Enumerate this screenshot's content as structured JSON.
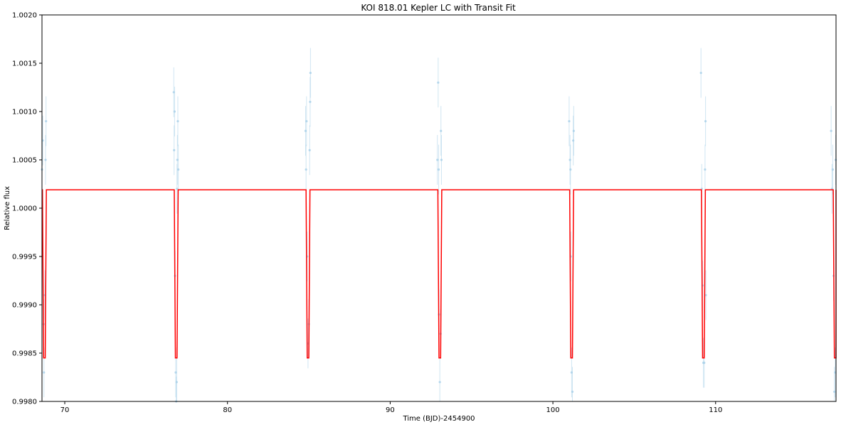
{
  "chart_data": {
    "type": "line",
    "title": "KOI 818.01 Kepler LC with Transit Fit",
    "xlabel": "Time (BJD)-2454900",
    "ylabel": "Relative flux",
    "xlim": [
      68.6,
      117.4
    ],
    "ylim": [
      0.998,
      1.002
    ],
    "x_ticks": [
      70,
      80,
      90,
      100,
      110
    ],
    "y_ticks": [
      0.998,
      0.9985,
      0.999,
      0.9995,
      1.0,
      1.0005,
      1.001,
      1.0015,
      1.002
    ],
    "x_tick_labels": [
      "70",
      "80",
      "90",
      "100",
      "110"
    ],
    "y_tick_labels": [
      "0.9980",
      "0.9985",
      "0.9990",
      "0.9995",
      "1.0000",
      "1.0005",
      "1.0010",
      "1.0015",
      "1.0020"
    ],
    "grid": false,
    "colors": {
      "model": "#ff0000",
      "data": "#a8cfe8"
    },
    "series": [
      {
        "kind": "model",
        "baseline": 1.00019,
        "depth_min": 0.99845,
        "transit_centers": [
          68.75,
          76.85,
          84.95,
          93.05,
          101.15,
          109.25,
          117.35
        ]
      },
      {
        "kind": "data",
        "points": [
          [
            68.6,
            1.0004
          ],
          [
            68.65,
            1.0007
          ],
          [
            68.7,
            0.9988
          ],
          [
            68.72,
            0.9983
          ],
          [
            68.78,
            0.9991
          ],
          [
            68.82,
            1.0005
          ],
          [
            68.85,
            1.0009
          ],
          [
            76.7,
            1.0012
          ],
          [
            76.72,
            1.0006
          ],
          [
            76.75,
            1.001
          ],
          [
            76.78,
            0.9993
          ],
          [
            76.82,
            0.9983
          ],
          [
            76.85,
            0.998
          ],
          [
            76.88,
            0.9982
          ],
          [
            76.9,
            1.0002
          ],
          [
            76.92,
            1.0005
          ],
          [
            76.95,
            1.0009
          ],
          [
            76.98,
            1.0004
          ],
          [
            84.8,
            1.0008
          ],
          [
            84.83,
            1.0004
          ],
          [
            84.86,
            1.0009
          ],
          [
            84.9,
            0.9995
          ],
          [
            84.95,
            0.9986
          ],
          [
            85.0,
            0.9988
          ],
          [
            85.05,
            1.0006
          ],
          [
            85.08,
            1.0011
          ],
          [
            85.1,
            1.0014
          ],
          [
            92.9,
            1.0005
          ],
          [
            92.95,
            1.0013
          ],
          [
            92.98,
            1.0004
          ],
          [
            93.0,
            0.9989
          ],
          [
            93.05,
            0.9982
          ],
          [
            93.1,
            0.9987
          ],
          [
            93.12,
            1.0008
          ],
          [
            93.15,
            1.0005
          ],
          [
            101.0,
            1.0009
          ],
          [
            101.05,
            1.0005
          ],
          [
            101.08,
            1.0004
          ],
          [
            101.1,
            0.9995
          ],
          [
            101.15,
            0.9983
          ],
          [
            101.2,
            0.9981
          ],
          [
            101.25,
            1.0007
          ],
          [
            101.28,
            1.0008
          ],
          [
            109.1,
            1.0014
          ],
          [
            109.15,
            1.0002
          ],
          [
            109.2,
            0.9992
          ],
          [
            109.25,
            0.9984
          ],
          [
            109.3,
            0.9984
          ],
          [
            109.35,
            1.0004
          ],
          [
            109.38,
            1.0009
          ],
          [
            109.4,
            0.9991
          ],
          [
            117.1,
            1.0008
          ],
          [
            117.15,
            1.0002
          ],
          [
            117.2,
            1.0004
          ],
          [
            117.25,
            0.9993
          ],
          [
            117.3,
            0.9981
          ],
          [
            117.35,
            0.9983
          ],
          [
            117.38,
            1.0005
          ]
        ]
      }
    ]
  }
}
